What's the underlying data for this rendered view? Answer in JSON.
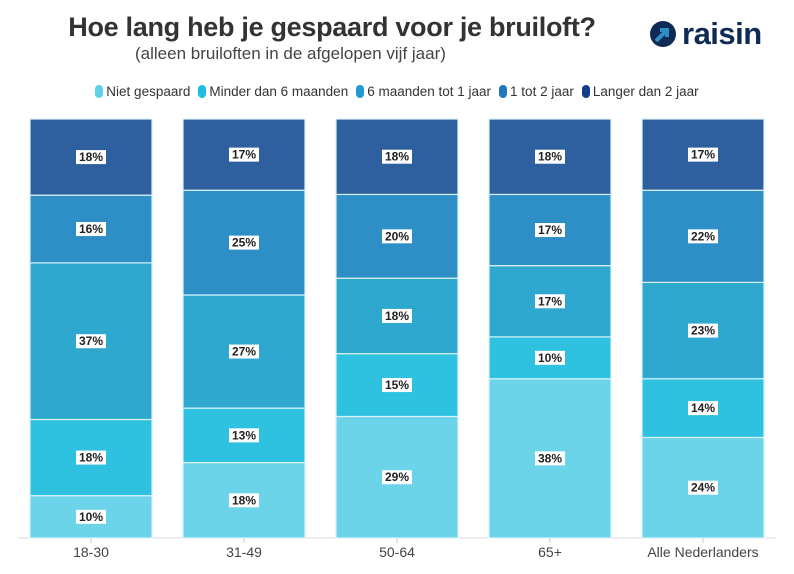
{
  "chart_data": {
    "type": "bar",
    "stacked": true,
    "title": "Hoe lang heb je gespaard voor je bruiloft?",
    "subtitle": "(alleen bruiloften in de afgelopen vijf jaar)",
    "categories": [
      "18-30",
      "31-49",
      "50-64",
      "65+",
      "Alle Nederlanders"
    ],
    "series": [
      {
        "name": "Niet gespaard",
        "color": "#6bd4e8",
        "legend_color": "#5fd0e6",
        "values": [
          10,
          18,
          29,
          38,
          24
        ]
      },
      {
        "name": "Minder dan 6 maanden",
        "color": "#2fc1e0",
        "legend_color": "#1ebde2",
        "values": [
          18,
          13,
          15,
          10,
          14
        ]
      },
      {
        "name": "6 maanden tot 1 jaar",
        "color": "#2fa8d0",
        "legend_color": "#1f9bd0",
        "values": [
          37,
          27,
          18,
          17,
          23
        ]
      },
      {
        "name": "1 tot 2 jaar",
        "color": "#2e8ec6",
        "legend_color": "#1f78be",
        "values": [
          16,
          25,
          20,
          17,
          22
        ]
      },
      {
        "name": "Langer dan 2 jaar",
        "color": "#2e5f9f",
        "legend_color": "#133e8a",
        "values": [
          18,
          17,
          18,
          18,
          17
        ]
      }
    ],
    "value_suffix": "%",
    "legend_placement": "top",
    "grid": false
  },
  "brand": {
    "name": "raisin",
    "color": "#0e2a55"
  }
}
